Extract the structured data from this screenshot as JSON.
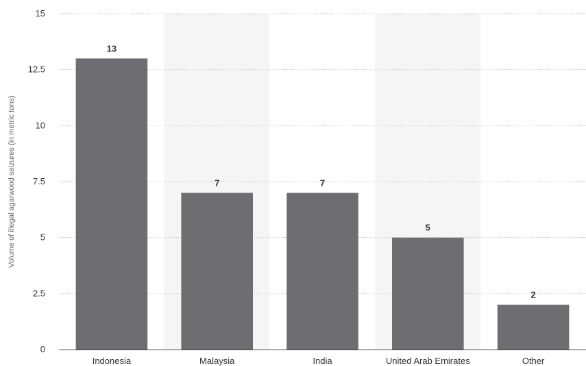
{
  "chart_data": {
    "type": "bar",
    "ylabel": "Volume of illegal agarwood seizures (in metric tons)",
    "xlabel": "",
    "ylim": [
      0,
      15
    ],
    "yticks": [
      0,
      2.5,
      5,
      7.5,
      10,
      12.5,
      15
    ],
    "ytick_labels": [
      "0",
      "2.5",
      "5",
      "7.5",
      "10",
      "12.5",
      "15"
    ],
    "categories": [
      "Indonesia",
      "Malaysia",
      "India",
      "United Arab Emirates",
      "Other"
    ],
    "values": [
      13,
      7,
      7,
      5,
      2
    ],
    "data_labels": [
      "13",
      "7",
      "7",
      "5",
      "2"
    ],
    "grid": true,
    "legend": "none",
    "colors": {
      "bar": "#6e6e72",
      "band": "#f5f5f5",
      "grid": "#bdbdbd",
      "axis": "#444444"
    }
  }
}
